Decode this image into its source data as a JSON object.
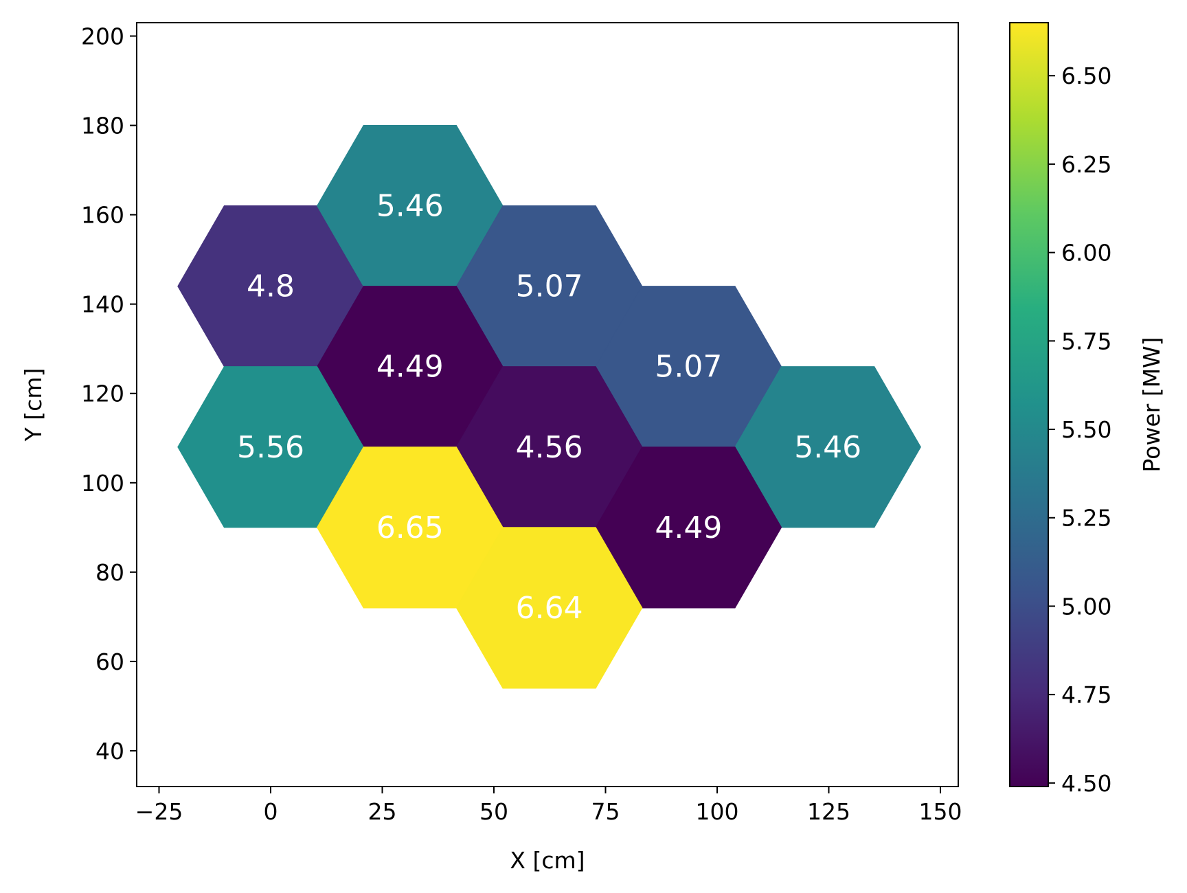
{
  "chart_data": {
    "type": "heatmap",
    "title": "",
    "xlabel": "X [cm]",
    "ylabel": "Y [cm]",
    "xlim": [
      -30,
      154
    ],
    "ylim": [
      32,
      203
    ],
    "xticks": [
      -25,
      0,
      25,
      50,
      75,
      100,
      125,
      150
    ],
    "xtick_labels": [
      "−25",
      "0",
      "25",
      "50",
      "75",
      "100",
      "125",
      "150"
    ],
    "yticks": [
      40,
      60,
      80,
      100,
      120,
      140,
      160,
      180,
      200
    ],
    "ytick_labels": [
      "40",
      "60",
      "80",
      "100",
      "120",
      "140",
      "160",
      "180",
      "200"
    ],
    "grid": false,
    "cell_shape": "flat-top hexagon",
    "hex_radius": 20.8,
    "cells": [
      {
        "x": 0,
        "y": 144,
        "value": 4.8,
        "label": "4.8"
      },
      {
        "x": 31.2,
        "y": 162,
        "value": 5.46,
        "label": "5.46"
      },
      {
        "x": 62.4,
        "y": 144,
        "value": 5.07,
        "label": "5.07"
      },
      {
        "x": 31.2,
        "y": 126,
        "value": 4.49,
        "label": "4.49"
      },
      {
        "x": 93.6,
        "y": 126,
        "value": 5.07,
        "label": "5.07"
      },
      {
        "x": 0,
        "y": 108,
        "value": 5.56,
        "label": "5.56"
      },
      {
        "x": 62.4,
        "y": 108,
        "value": 4.56,
        "label": "4.56"
      },
      {
        "x": 124.8,
        "y": 108,
        "value": 5.46,
        "label": "5.46"
      },
      {
        "x": 31.2,
        "y": 90,
        "value": 6.65,
        "label": "6.65"
      },
      {
        "x": 93.6,
        "y": 90,
        "value": 4.49,
        "label": "4.49"
      },
      {
        "x": 62.4,
        "y": 72,
        "value": 6.64,
        "label": "6.64"
      }
    ],
    "colorbar": {
      "label": "Power [MW]",
      "colormap": "viridis",
      "range": [
        4.49,
        6.65
      ],
      "ticks": [
        4.5,
        4.75,
        5.0,
        5.25,
        5.5,
        5.75,
        6.0,
        6.25,
        6.5
      ],
      "tick_labels": [
        "4.50",
        "4.75",
        "5.00",
        "5.25",
        "5.50",
        "5.75",
        "6.00",
        "6.25",
        "6.50"
      ]
    }
  }
}
